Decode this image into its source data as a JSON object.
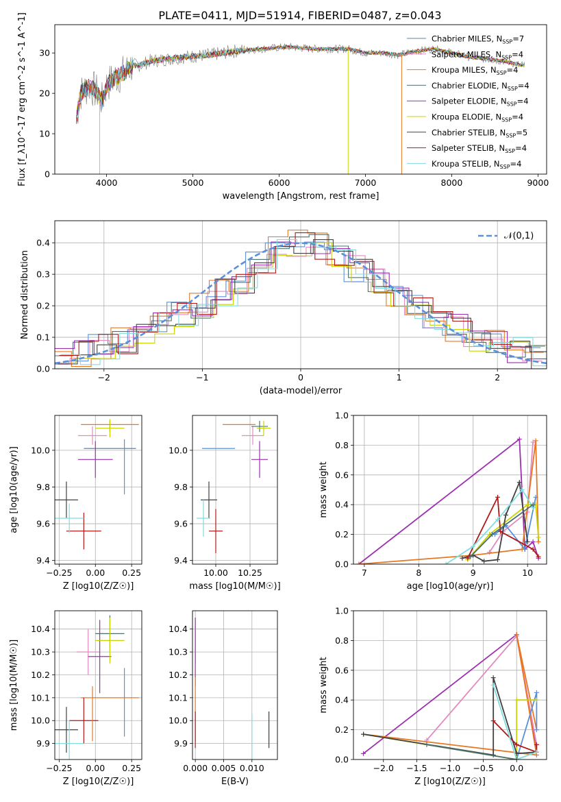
{
  "figure_title": "PLATE=0411, MJD=51914, FIBERID=0487, z=0.043",
  "model_colors": [
    "#6f7f94",
    "#e28ac0",
    "#e87722",
    "#4a7070",
    "#9b2fb0",
    "#c8d400",
    "#404040",
    "#b01818",
    "#7fdde0"
  ],
  "chart_data": [
    {
      "id": "spectrum",
      "type": "line",
      "title": "PLATE=0411, MJD=51914, FIBERID=0487, z=0.043",
      "xlabel": "wavelength [Angstrom, rest frame]",
      "ylabel": "Flux [f_λ10^-17 erg cm^-2 s^-1 A^-1]",
      "xlim": [
        3400,
        9100
      ],
      "ylim": [
        0,
        37
      ],
      "xticks": [
        4000,
        5000,
        6000,
        7000,
        8000,
        9000
      ],
      "yticks": [
        0,
        10,
        20,
        30
      ],
      "grid": false,
      "legend_position": "top-right",
      "data_envelope": {
        "x": [
          3650,
          3700,
          3800,
          3900,
          3950,
          4000,
          4100,
          4200,
          4300,
          4400,
          4500,
          4700,
          4900,
          5200,
          5500,
          5800,
          6100,
          6400,
          6600,
          6800,
          7000,
          7200,
          7400,
          7600,
          7800,
          8000,
          8200,
          8400,
          8600,
          8800
        ],
        "y": [
          14,
          20,
          22,
          20,
          18,
          22,
          24,
          25,
          27,
          27,
          28,
          28.5,
          29,
          29.5,
          30.5,
          31,
          31.5,
          31,
          31,
          31,
          30,
          30,
          29.5,
          30.5,
          31,
          30,
          29,
          28.5,
          28,
          27
        ]
      },
      "series": [
        {
          "name": "Chabrier MILES, N_SSP=7",
          "color": "#6f7f94"
        },
        {
          "name": "Salpeter MILES, N_SSP=4",
          "color": "#e28ac0"
        },
        {
          "name": "Kroupa MILES, N_SSP=4",
          "color": "#e87722"
        },
        {
          "name": "Chabrier ELODIE, N_SSP=4",
          "color": "#4a7070"
        },
        {
          "name": "Salpeter ELODIE, N_SSP=4",
          "color": "#9b2fb0"
        },
        {
          "name": "Kroupa ELODIE, N_SSP=4",
          "color": "#c8d400"
        },
        {
          "name": "Chabrier STELIB, N_SSP=5",
          "color": "#404040"
        },
        {
          "name": "Salpeter STELIB, N_SSP=4",
          "color": "#b01818"
        },
        {
          "name": "Kroupa STELIB, N_SSP=4",
          "color": "#7fdde0"
        }
      ]
    },
    {
      "id": "residuals",
      "type": "line",
      "xlabel": "(data-model)/error",
      "ylabel": "Normed distribution",
      "xlim": [
        -2.5,
        2.5
      ],
      "ylim": [
        0,
        0.47
      ],
      "xticks": [
        -2,
        -1,
        0,
        1,
        2
      ],
      "yticks": [
        0.0,
        0.1,
        0.2,
        0.3,
        0.4
      ],
      "grid": true,
      "legend_position": "top-right",
      "reference_curve": {
        "name": "𝒩(0,1)",
        "mean": 0,
        "sigma": 1,
        "color": "#5a8fdc"
      },
      "bins": [
        -2.5,
        -2.3,
        -2.1,
        -1.9,
        -1.7,
        -1.5,
        -1.3,
        -1.1,
        -0.9,
        -0.7,
        -0.5,
        -0.3,
        -0.1,
        0.1,
        0.3,
        0.5,
        0.7,
        0.9,
        1.1,
        1.3,
        1.5,
        1.7,
        1.9,
        2.1,
        2.3,
        2.5
      ],
      "hist_base": [
        0.03,
        0.05,
        0.07,
        0.09,
        0.11,
        0.14,
        0.17,
        0.2,
        0.24,
        0.28,
        0.33,
        0.38,
        0.4,
        0.39,
        0.36,
        0.32,
        0.28,
        0.24,
        0.2,
        0.16,
        0.13,
        0.1,
        0.08,
        0.06,
        0.04
      ]
    },
    {
      "id": "age-vs-Z",
      "type": "scatter",
      "xlabel": "Z [log10(Z/Z☉)]",
      "ylabel": "age [log10(age/yr)]",
      "xlim": [
        -0.28,
        0.32
      ],
      "ylim": [
        9.38,
        10.19
      ],
      "xticks": [
        -0.25,
        0.0,
        0.25
      ],
      "yticks": [
        9.4,
        9.6,
        9.8,
        10.0
      ],
      "grid": true,
      "points": [
        {
          "x": 0.1,
          "y": 10.01,
          "xerr": 0.18,
          "yerr": 0.0,
          "color": "#6f7f94"
        },
        {
          "x": 0.2,
          "y": 9.91,
          "xerr": 0.0,
          "yerr": 0.15,
          "color": "#5a8fdc"
        },
        {
          "x": -0.02,
          "y": 10.08,
          "xerr": 0.1,
          "yerr": 0.05,
          "color": "#e28ac0"
        },
        {
          "x": 0.1,
          "y": 10.14,
          "xerr": 0.2,
          "yerr": 0.0,
          "color": "#e87722"
        },
        {
          "x": 0.1,
          "y": 10.13,
          "xerr": 0.0,
          "yerr": 0.03,
          "color": "#4a7070"
        },
        {
          "x": 0.0,
          "y": 9.95,
          "xerr": 0.12,
          "yerr": 0.1,
          "color": "#9b2fb0"
        },
        {
          "x": 0.1,
          "y": 10.12,
          "xerr": 0.1,
          "yerr": 0.05,
          "color": "#c8d400"
        },
        {
          "x": -0.2,
          "y": 9.73,
          "xerr": 0.08,
          "yerr": 0.1,
          "color": "#404040"
        },
        {
          "x": -0.08,
          "y": 9.56,
          "xerr": 0.12,
          "yerr": 0.1,
          "color": "#b01818"
        },
        {
          "x": -0.18,
          "y": 9.63,
          "xerr": 0.1,
          "yerr": 0.08,
          "color": "#7fdde0"
        }
      ]
    },
    {
      "id": "age-vs-mass",
      "type": "scatter",
      "xlabel": "mass [log10(M/M☉)]",
      "ylabel": "",
      "xlim": [
        9.83,
        10.45
      ],
      "ylim": [
        9.38,
        10.19
      ],
      "xticks": [
        10.0,
        10.25
      ],
      "yticks": [
        9.4,
        9.6,
        9.8,
        10.0
      ],
      "grid": true,
      "points": [
        {
          "x": 10.02,
          "y": 10.01,
          "xerr": 0.12,
          "yerr": 0.0,
          "color": "#5a8fdc"
        },
        {
          "x": 10.27,
          "y": 10.08,
          "xerr": 0.08,
          "yerr": 0.05,
          "color": "#e28ac0"
        },
        {
          "x": 10.17,
          "y": 10.14,
          "xerr": 0.12,
          "yerr": 0.0,
          "color": "#e87722"
        },
        {
          "x": 10.32,
          "y": 10.13,
          "xerr": 0.06,
          "yerr": 0.03,
          "color": "#4a7070"
        },
        {
          "x": 10.32,
          "y": 9.95,
          "xerr": 0.06,
          "yerr": 0.1,
          "color": "#9b2fb0"
        },
        {
          "x": 10.35,
          "y": 10.12,
          "xerr": 0.05,
          "yerr": 0.04,
          "color": "#c8d400"
        },
        {
          "x": 9.95,
          "y": 9.73,
          "xerr": 0.06,
          "yerr": 0.1,
          "color": "#404040"
        },
        {
          "x": 10.0,
          "y": 9.56,
          "xerr": 0.05,
          "yerr": 0.12,
          "color": "#b01818"
        },
        {
          "x": 9.91,
          "y": 9.63,
          "xerr": 0.05,
          "yerr": 0.1,
          "color": "#7fdde0"
        }
      ]
    },
    {
      "id": "massweight-vs-age",
      "type": "line",
      "xlabel": "age [log10(age/yr)]",
      "ylabel": "mass weight",
      "xlim": [
        6.8,
        10.35
      ],
      "ylim": [
        0,
        1.0
      ],
      "xticks": [
        7,
        8,
        9,
        10
      ],
      "yticks": [
        0.0,
        0.2,
        0.4,
        0.6,
        0.8,
        1.0
      ],
      "grid": true,
      "series": [
        {
          "color": "#9b2fb0",
          "x": [
            6.9,
            9.85,
            9.95,
            10.1,
            10.2
          ],
          "y": [
            0.0,
            0.84,
            0.1,
            0.15,
            0.04
          ]
        },
        {
          "color": "#e28ac0",
          "x": [
            9.3,
            9.55,
            10.0,
            10.1
          ],
          "y": [
            0.08,
            0.22,
            0.35,
            0.82
          ]
        },
        {
          "color": "#e87722",
          "x": [
            6.9,
            9.0,
            9.9,
            10.15,
            10.2
          ],
          "y": [
            0.0,
            0.06,
            0.1,
            0.83,
            0.15
          ]
        },
        {
          "color": "#5a8fdc",
          "x": [
            9.4,
            9.6,
            9.95,
            10.15
          ],
          "y": [
            0.2,
            0.26,
            0.1,
            0.45
          ]
        },
        {
          "color": "#c8d400",
          "x": [
            8.9,
            9.3,
            10.0,
            10.15,
            10.2
          ],
          "y": [
            0.03,
            0.2,
            0.4,
            0.4,
            0.18
          ]
        },
        {
          "color": "#404040",
          "x": [
            8.8,
            9.0,
            9.2,
            9.45,
            9.6,
            9.85,
            10.0
          ],
          "y": [
            0.04,
            0.06,
            0.02,
            0.03,
            0.33,
            0.55,
            0.15
          ]
        },
        {
          "color": "#b01818",
          "x": [
            8.9,
            9.45,
            9.5,
            10.1,
            10.2
          ],
          "y": [
            0.04,
            0.45,
            0.22,
            0.1,
            0.05
          ]
        },
        {
          "color": "#7fdde0",
          "x": [
            8.5,
            9.0,
            9.45,
            9.9,
            10.1
          ],
          "y": [
            0.0,
            0.12,
            0.3,
            0.5,
            0.38
          ]
        },
        {
          "color": "#4a7070",
          "x": [
            8.95,
            9.35,
            10.1
          ],
          "y": [
            0.05,
            0.2,
            0.4
          ]
        }
      ]
    },
    {
      "id": "mass-vs-Z",
      "type": "scatter",
      "xlabel": "Z [log10(Z/Z☉)]",
      "ylabel": "mass [log10(M/M☉)]",
      "xlim": [
        -0.28,
        0.32
      ],
      "ylim": [
        9.83,
        10.48
      ],
      "xticks": [
        -0.25,
        0.0,
        0.25
      ],
      "yticks": [
        9.9,
        10.0,
        10.1,
        10.2,
        10.3,
        10.4
      ],
      "grid": true,
      "points": [
        {
          "x": 0.2,
          "y": 10.08,
          "xerr": 0.0,
          "yerr": 0.15,
          "color": "#5a8fdc"
        },
        {
          "x": -0.05,
          "y": 10.3,
          "xerr": 0.08,
          "yerr": 0.1,
          "color": "#e28ac0"
        },
        {
          "x": 0.1,
          "y": 10.1,
          "xerr": 0.2,
          "yerr": 0.0,
          "color": "#e87722"
        },
        {
          "x": 0.1,
          "y": 10.38,
          "xerr": 0.1,
          "yerr": 0.08,
          "color": "#4a7070"
        },
        {
          "x": 0.03,
          "y": 10.28,
          "xerr": 0.08,
          "yerr": 0.16,
          "color": "#9b2fb0"
        },
        {
          "x": 0.1,
          "y": 10.35,
          "xerr": 0.1,
          "yerr": 0.1,
          "color": "#c8d400"
        },
        {
          "x": -0.2,
          "y": 9.96,
          "xerr": 0.08,
          "yerr": 0.1,
          "color": "#404040"
        },
        {
          "x": -0.08,
          "y": 10.0,
          "xerr": 0.1,
          "yerr": 0.1,
          "color": "#b01818"
        },
        {
          "x": -0.18,
          "y": 9.9,
          "xerr": 0.1,
          "yerr": 0.1,
          "color": "#7fdde0"
        },
        {
          "x": -0.02,
          "y": 10.03,
          "xerr": 0.0,
          "yerr": 0.12,
          "color": "#e87722"
        }
      ]
    },
    {
      "id": "mass-vs-ebv",
      "type": "scatter",
      "xlabel": "E(B-V)",
      "ylabel": "",
      "xlim": [
        -0.0005,
        0.0145
      ],
      "ylim": [
        9.83,
        10.48
      ],
      "xticks": [
        0.0,
        0.005,
        0.01
      ],
      "yticks": [
        9.9,
        10.0,
        10.1,
        10.2,
        10.3,
        10.4
      ],
      "grid": true,
      "points": [
        {
          "x": 0.0,
          "y": 10.35,
          "xerr": 0,
          "yerr": 0.1,
          "color": "#c8d400"
        },
        {
          "x": 0.0,
          "y": 10.3,
          "xerr": 0,
          "yerr": 0.15,
          "color": "#9b2fb0"
        },
        {
          "x": 0.0,
          "y": 10.05,
          "xerr": 0,
          "yerr": 0.14,
          "color": "#e87722"
        },
        {
          "x": 0.0,
          "y": 9.96,
          "xerr": 0,
          "yerr": 0.08,
          "color": "#b01818"
        },
        {
          "x": 0.01,
          "y": 9.93,
          "xerr": 0,
          "yerr": 0.1,
          "color": "#7fdde0"
        },
        {
          "x": 0.013,
          "y": 9.96,
          "xerr": 0,
          "yerr": 0.08,
          "color": "#404040"
        }
      ]
    },
    {
      "id": "massweight-vs-Z",
      "type": "line",
      "xlabel": "Z [log10(Z/Z☉)]",
      "ylabel": "mass weight",
      "xlim": [
        -2.45,
        0.45
      ],
      "ylim": [
        0,
        1.0
      ],
      "xticks": [
        -2.0,
        -1.5,
        -1.0,
        -0.5,
        0.0
      ],
      "yticks": [
        0.0,
        0.2,
        0.4,
        0.6,
        0.8,
        1.0
      ],
      "grid": true,
      "series": [
        {
          "color": "#9b2fb0",
          "x": [
            -2.3,
            0.0,
            0.3
          ],
          "y": [
            0.04,
            0.84,
            0.05
          ]
        },
        {
          "color": "#e28ac0",
          "x": [
            -1.35,
            0.0,
            0.3
          ],
          "y": [
            0.13,
            0.83,
            0.1
          ]
        },
        {
          "color": "#e87722",
          "x": [
            -2.3,
            0.3,
            0.0,
            0.3
          ],
          "y": [
            0.17,
            0.03,
            0.84,
            0.2
          ]
        },
        {
          "color": "#5a8fdc",
          "x": [
            0.0,
            0.3,
            0.3
          ],
          "y": [
            0.0,
            0.45,
            0.2
          ]
        },
        {
          "color": "#c8d400",
          "x": [
            -2.3,
            0.0,
            0.0,
            0.3
          ],
          "y": [
            0.17,
            0.0,
            0.4,
            0.4
          ]
        },
        {
          "color": "#404040",
          "x": [
            -2.3,
            -0.35,
            -0.35,
            0.0,
            0.3
          ],
          "y": [
            0.17,
            0.03,
            0.55,
            0.04,
            0.05
          ]
        },
        {
          "color": "#b01818",
          "x": [
            -0.35,
            0.0,
            0.3,
            0.3
          ],
          "y": [
            0.26,
            0.1,
            0.05,
            0.1
          ]
        },
        {
          "color": "#7fdde0",
          "x": [
            -0.35,
            0.0,
            0.3
          ],
          "y": [
            0.5,
            0.0,
            0.05
          ]
        },
        {
          "color": "#4a7070",
          "x": [
            -1.35,
            0.0
          ],
          "y": [
            0.1,
            0.0
          ]
        }
      ]
    }
  ]
}
